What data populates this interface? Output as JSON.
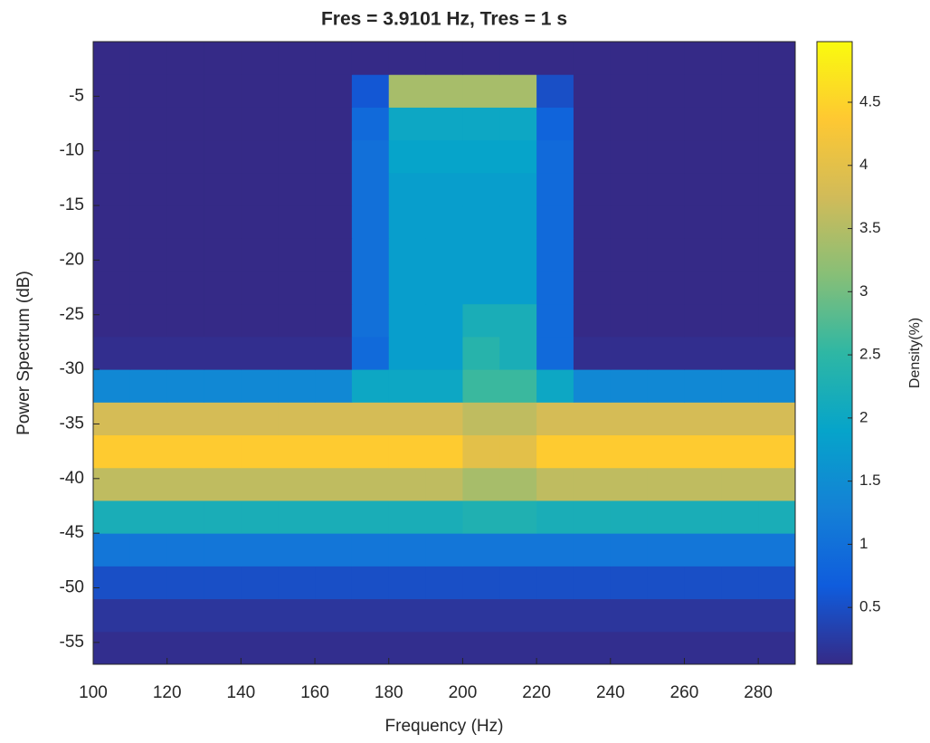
{
  "chart_data": {
    "type": "heatmap",
    "title": "Fres = 3.9101 Hz, Tres = 1 s",
    "xlabel": "Frequency (Hz)",
    "ylabel": "Power Spectrum (dB)",
    "colorbar_label": "Density(%)",
    "x_bins": [
      100,
      110,
      120,
      130,
      140,
      150,
      160,
      170,
      180,
      190,
      200,
      210,
      220,
      230,
      240,
      250,
      260,
      270,
      280,
      290
    ],
    "y_bins": [
      -57,
      -54,
      -51,
      -48,
      -45,
      -42,
      -39,
      -36,
      -33,
      -30,
      -27,
      -24,
      -21,
      -18,
      -15,
      -12,
      -9,
      -6,
      -3,
      0
    ],
    "z": [
      [
        0.1,
        0.1,
        0.1,
        0.1,
        0.1,
        0.1,
        0.1,
        0.1,
        0.1,
        0.1,
        0.1,
        0.1,
        0.1,
        0.1,
        0.1,
        0.1,
        0.1,
        0.1,
        0.1
      ],
      [
        0.2,
        0.2,
        0.2,
        0.2,
        0.2,
        0.2,
        0.2,
        0.2,
        0.2,
        0.2,
        0.2,
        0.2,
        0.2,
        0.2,
        0.2,
        0.2,
        0.2,
        0.2,
        0.2
      ],
      [
        0.5,
        0.5,
        0.5,
        0.5,
        0.5,
        0.5,
        0.5,
        0.5,
        0.5,
        0.5,
        0.5,
        0.5,
        0.5,
        0.5,
        0.5,
        0.5,
        0.5,
        0.5,
        0.5
      ],
      [
        1.1,
        1.1,
        1.1,
        1.1,
        1.1,
        1.1,
        1.1,
        1.1,
        1.1,
        1.1,
        1.1,
        1.1,
        1.1,
        1.1,
        1.1,
        1.1,
        1.1,
        1.1,
        1.1
      ],
      [
        2.2,
        2.2,
        2.2,
        2.2,
        2.2,
        2.2,
        2.2,
        2.2,
        2.2,
        2.2,
        2.3,
        2.3,
        2.2,
        2.2,
        2.2,
        2.2,
        2.2,
        2.2,
        2.2
      ],
      [
        3.6,
        3.6,
        3.6,
        3.6,
        3.6,
        3.6,
        3.6,
        3.6,
        3.6,
        3.6,
        3.4,
        3.4,
        3.6,
        3.6,
        3.6,
        3.6,
        3.6,
        3.6,
        3.6
      ],
      [
        4.4,
        4.4,
        4.4,
        4.4,
        4.4,
        4.4,
        4.4,
        4.4,
        4.4,
        4.4,
        4.0,
        4.0,
        4.4,
        4.4,
        4.4,
        4.4,
        4.4,
        4.4,
        4.4
      ],
      [
        3.8,
        3.8,
        3.8,
        3.8,
        3.8,
        3.8,
        3.8,
        3.8,
        3.8,
        3.8,
        3.6,
        3.6,
        3.8,
        3.8,
        3.8,
        3.8,
        3.8,
        3.8,
        3.8
      ],
      [
        1.4,
        1.4,
        1.4,
        1.4,
        1.4,
        1.4,
        1.4,
        2.0,
        2.0,
        2.0,
        2.6,
        2.6,
        2.0,
        1.4,
        1.4,
        1.4,
        1.4,
        1.4,
        1.4
      ],
      [
        0.1,
        0.1,
        0.1,
        0.1,
        0.1,
        0.1,
        0.1,
        0.9,
        1.8,
        1.8,
        2.4,
        2.2,
        0.9,
        0.1,
        0.1,
        0.1,
        0.1,
        0.1,
        0.1
      ],
      [
        0.05,
        0.05,
        0.05,
        0.05,
        0.05,
        0.05,
        0.05,
        1.0,
        1.8,
        1.8,
        2.2,
        2.2,
        0.9,
        0.05,
        0.05,
        0.05,
        0.05,
        0.05,
        0.05
      ],
      [
        0.05,
        0.05,
        0.05,
        0.05,
        0.05,
        0.05,
        0.05,
        1.0,
        1.8,
        1.8,
        1.8,
        1.8,
        0.9,
        0.05,
        0.05,
        0.05,
        0.05,
        0.05,
        0.05
      ],
      [
        0.05,
        0.05,
        0.05,
        0.05,
        0.05,
        0.05,
        0.05,
        1.0,
        1.8,
        1.8,
        1.8,
        1.8,
        0.9,
        0.05,
        0.05,
        0.05,
        0.05,
        0.05,
        0.05
      ],
      [
        0.05,
        0.05,
        0.05,
        0.05,
        0.05,
        0.05,
        0.05,
        1.0,
        1.8,
        1.8,
        1.8,
        1.8,
        0.9,
        0.05,
        0.05,
        0.05,
        0.05,
        0.05,
        0.05
      ],
      [
        0.05,
        0.05,
        0.05,
        0.05,
        0.05,
        0.05,
        0.05,
        1.0,
        1.8,
        1.8,
        1.8,
        1.8,
        0.9,
        0.05,
        0.05,
        0.05,
        0.05,
        0.05,
        0.05
      ],
      [
        0.05,
        0.05,
        0.05,
        0.05,
        0.05,
        0.05,
        0.05,
        1.0,
        1.9,
        1.9,
        1.9,
        1.9,
        0.9,
        0.05,
        0.05,
        0.05,
        0.05,
        0.05,
        0.05
      ],
      [
        0.05,
        0.05,
        0.05,
        0.05,
        0.05,
        0.05,
        0.05,
        0.9,
        2.0,
        2.0,
        2.0,
        2.0,
        0.8,
        0.05,
        0.05,
        0.05,
        0.05,
        0.05,
        0.05
      ],
      [
        0.05,
        0.05,
        0.05,
        0.05,
        0.05,
        0.05,
        0.05,
        0.6,
        3.4,
        3.4,
        3.4,
        3.4,
        0.5,
        0.05,
        0.05,
        0.05,
        0.05,
        0.05,
        0.05
      ],
      [
        0.05,
        0.05,
        0.05,
        0.05,
        0.05,
        0.05,
        0.05,
        0.05,
        0.05,
        0.05,
        0.05,
        0.05,
        0.05,
        0.05,
        0.05,
        0.05,
        0.05,
        0.05,
        0.05
      ]
    ],
    "xlim": [
      100,
      290
    ],
    "ylim": [
      -57,
      0
    ],
    "xticks": [
      100,
      120,
      140,
      160,
      180,
      200,
      220,
      240,
      260,
      280
    ],
    "yticks": [
      -55,
      -50,
      -45,
      -40,
      -35,
      -30,
      -25,
      -20,
      -15,
      -10,
      -5
    ],
    "clim": [
      0.05,
      4.98
    ],
    "cticks": [
      0.5,
      1,
      1.5,
      2,
      2.5,
      3,
      3.5,
      4,
      4.5
    ],
    "colormap": [
      "#352a87",
      "#0f5cdd",
      "#1481d6",
      "#06a4ca",
      "#2eb7a4",
      "#87bf77",
      "#d1bb59",
      "#fec832",
      "#f9fb0e"
    ]
  }
}
